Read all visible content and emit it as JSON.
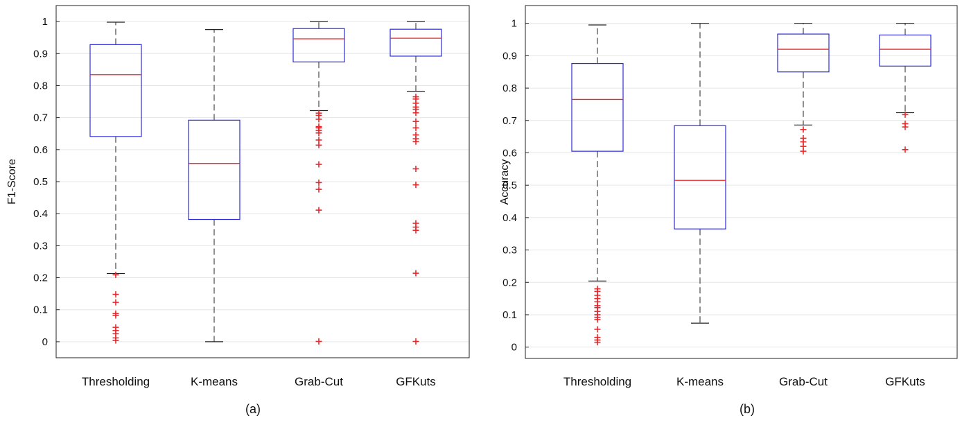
{
  "chart_data": [
    {
      "type": "box",
      "panel_label": "(a)",
      "ylabel": "F1-Score",
      "ylim": [
        -0.05,
        1.05
      ],
      "yticks": [
        0,
        0.1,
        0.2,
        0.3,
        0.4,
        0.5,
        0.6,
        0.7,
        0.8,
        0.9,
        1
      ],
      "ytick_labels": [
        "0",
        "0.1",
        "0.2",
        "0.3",
        "0.4",
        "0.5",
        "0.6",
        "0.7",
        "0.8",
        "0.9",
        "1"
      ],
      "grid": "horizontal",
      "categories": [
        "Thresholding",
        "K-means",
        "Grab-Cut",
        "GFKuts"
      ],
      "boxes": [
        {
          "whisker_low": 0.213,
          "q1": 0.641,
          "median": 0.834,
          "q3": 0.928,
          "whisker_high": 0.998,
          "outliers": [
            0.209,
            0.148,
            0.123,
            0.088,
            0.082,
            0.045,
            0.035,
            0.025,
            0.012,
            0.004
          ]
        },
        {
          "whisker_low": 0.0,
          "q1": 0.382,
          "median": 0.557,
          "q3": 0.692,
          "whisker_high": 0.975,
          "outliers": []
        },
        {
          "whisker_low": 0.722,
          "q1": 0.874,
          "median": 0.946,
          "q3": 0.978,
          "whisker_high": 1.0,
          "outliers": [
            0.714,
            0.707,
            0.695,
            0.672,
            0.668,
            0.66,
            0.652,
            0.63,
            0.614,
            0.554,
            0.497,
            0.476,
            0.411,
            0.001
          ]
        },
        {
          "whisker_low": 0.782,
          "q1": 0.892,
          "median": 0.948,
          "q3": 0.976,
          "whisker_high": 1.0,
          "outliers": [
            0.765,
            0.758,
            0.745,
            0.733,
            0.726,
            0.715,
            0.688,
            0.668,
            0.646,
            0.634,
            0.625,
            0.54,
            0.49,
            0.37,
            0.358,
            0.348,
            0.214,
            0.001
          ]
        }
      ]
    },
    {
      "type": "box",
      "panel_label": "(b)",
      "ylabel": "Accuracy",
      "ylim": [
        -0.035,
        1.055
      ],
      "yticks": [
        0,
        0.1,
        0.2,
        0.3,
        0.4,
        0.5,
        0.6,
        0.7,
        0.8,
        0.9,
        1
      ],
      "ytick_labels": [
        "0",
        "0.1",
        "0.2",
        "0.3",
        "0.4",
        "0.5",
        "0.6",
        "0.7",
        "0.8",
        "0.9",
        "1"
      ],
      "grid": "horizontal",
      "categories": [
        "Thresholding",
        "K-means",
        "Grab-Cut",
        "GFKuts"
      ],
      "boxes": [
        {
          "whisker_low": 0.204,
          "q1": 0.605,
          "median": 0.765,
          "q3": 0.876,
          "whisker_high": 0.995,
          "outliers": [
            0.18,
            0.172,
            0.16,
            0.15,
            0.14,
            0.128,
            0.122,
            0.11,
            0.1,
            0.092,
            0.085,
            0.055,
            0.03,
            0.022,
            0.015
          ]
        },
        {
          "whisker_low": 0.074,
          "q1": 0.365,
          "median": 0.515,
          "q3": 0.684,
          "whisker_high": 1.0,
          "outliers": []
        },
        {
          "whisker_low": 0.686,
          "q1": 0.85,
          "median": 0.92,
          "q3": 0.967,
          "whisker_high": 1.0,
          "outliers": [
            0.672,
            0.645,
            0.634,
            0.62,
            0.605
          ]
        },
        {
          "whisker_low": 0.724,
          "q1": 0.868,
          "median": 0.92,
          "q3": 0.964,
          "whisker_high": 1.0,
          "outliers": [
            0.718,
            0.69,
            0.68,
            0.61
          ]
        }
      ]
    }
  ],
  "colors": {
    "box": "#2b2bd6",
    "median": "#e8282b",
    "whisker": "#222222",
    "outlier": "#e8282b",
    "grid": "#e6e6e6",
    "axis": "#222222"
  }
}
